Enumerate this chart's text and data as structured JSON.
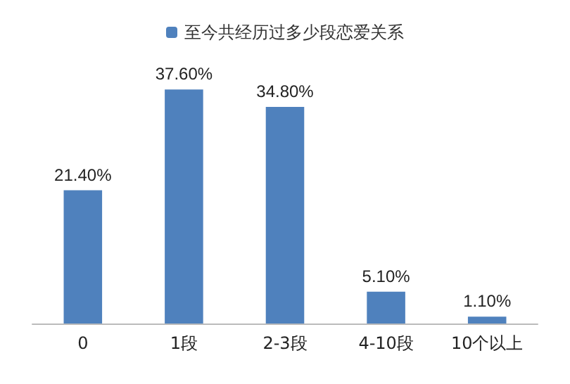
{
  "chart_data": {
    "type": "bar",
    "categories": [
      "0",
      "1段",
      "2-3段",
      "4-10段",
      "10个以上"
    ],
    "series": [
      {
        "name": "至今共经历过多少段恋爱关系",
        "color": "#4f81bd",
        "values": [
          21.4,
          37.6,
          34.8,
          5.1,
          1.1
        ],
        "value_labels": [
          "21.40%",
          "37.60%",
          "34.80%",
          "5.10%",
          "1.10%"
        ]
      }
    ],
    "legend": "top"
  }
}
